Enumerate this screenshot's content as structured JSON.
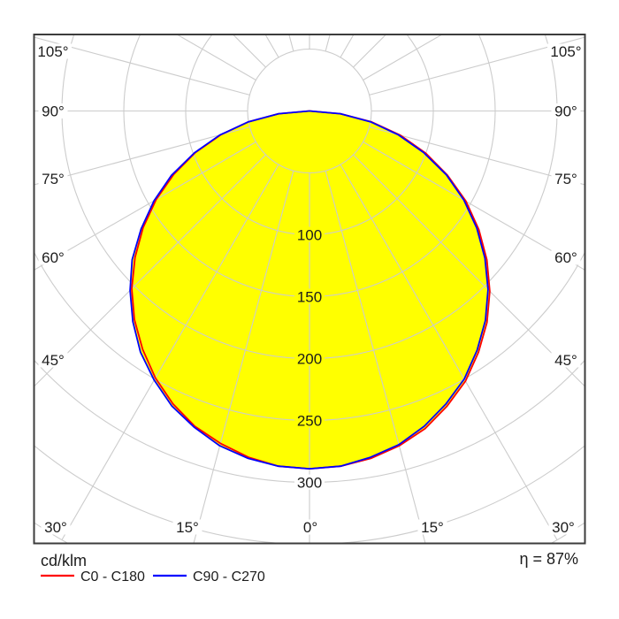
{
  "legend": {
    "unit_label": "cd/klm"
  },
  "efficiency_label": "η = 87%",
  "axis": {
    "side_angle_labels": [
      "105°",
      "90°",
      "75°",
      "60°",
      "45°"
    ],
    "bottom_angle_labels": [
      "30°",
      "15°",
      "0°",
      "15°",
      "30°"
    ],
    "ring_labels": [
      "100",
      "150",
      "200",
      "250",
      "300"
    ]
  },
  "colors": {
    "fill": "#ffff00",
    "c0_c180": "#ff0000",
    "c90_c270": "#0000ff",
    "grid": "#cccccc",
    "frame": "#3c3c3c",
    "text": "#1c1c1c",
    "background": "#ffffff"
  },
  "chart_data": {
    "type": "polar",
    "kind": "photometric-intensity-distribution",
    "unit": "cd/klm",
    "efficiency": "η = 87%",
    "angle_step_deg": 15,
    "labeled_side_angles_deg": [
      105,
      90,
      75,
      60,
      45
    ],
    "labeled_bottom_angles_deg": [
      30,
      15,
      0,
      15,
      30
    ],
    "ring_step": 50,
    "ring_min": 50,
    "ring_max": 400,
    "labeled_rings": [
      100,
      150,
      200,
      250,
      300
    ],
    "gamma_deg": [
      -90,
      -85,
      -80,
      -75,
      -70,
      -65,
      -60,
      -55,
      -50,
      -45,
      -40,
      -35,
      -30,
      -25,
      -20,
      -15,
      -10,
      -5,
      0,
      5,
      10,
      15,
      20,
      25,
      30,
      35,
      40,
      45,
      50,
      55,
      60,
      65,
      70,
      75,
      80,
      85,
      90
    ],
    "series": [
      {
        "name": "C0 - C180",
        "color": "#ff0000",
        "values": [
          0,
          25,
          50,
          74,
          98,
          121,
          143,
          164,
          184,
          203,
          220,
          235,
          249,
          261,
          271,
          278,
          284,
          288,
          289,
          288,
          285,
          280,
          273,
          263,
          252,
          238,
          223,
          206,
          187,
          167,
          146,
          123,
          100,
          76,
          51,
          25,
          0
        ]
      },
      {
        "name": "C90 - C270",
        "color": "#0000ff",
        "values": [
          0,
          25,
          50,
          75,
          99,
          123,
          145,
          166,
          187,
          205,
          222,
          238,
          251,
          263,
          272,
          280,
          285,
          288,
          289,
          288,
          284,
          279,
          271,
          261,
          250,
          236,
          221,
          204,
          185,
          165,
          144,
          122,
          98,
          74,
          50,
          25,
          0
        ]
      }
    ],
    "fill_color": "#ffff00",
    "grid": true,
    "legend_position": "bottom-left"
  }
}
